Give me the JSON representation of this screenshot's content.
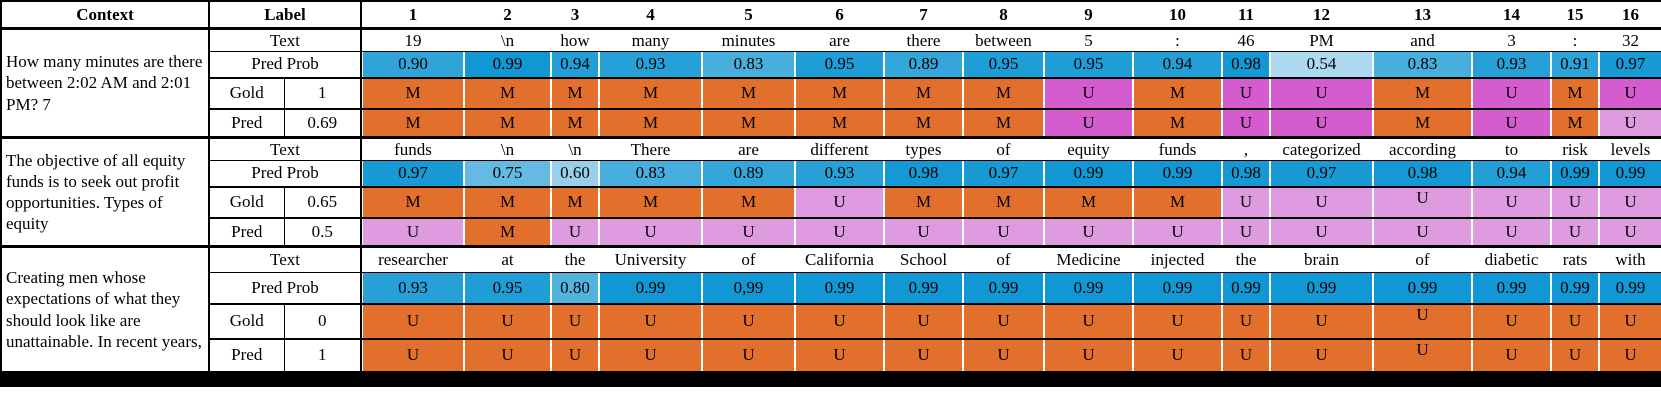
{
  "header": {
    "context": "Context",
    "label": "Label",
    "cols": [
      "1",
      "2",
      "3",
      "4",
      "5",
      "6",
      "7",
      "8",
      "9",
      "10",
      "11",
      "12",
      "13",
      "14",
      "15",
      "16"
    ]
  },
  "row_labels": {
    "text": "Text",
    "pred_prob": "Pred Prob",
    "gold": "Gold",
    "pred": "Pred"
  },
  "colors": {
    "orange": "#e2702c",
    "magenta": "#d45ccf",
    "plum": "#df9be0",
    "prob_low": "#badef2",
    "prob_high": "#0e96d3",
    "border": "#000000"
  },
  "blocks": [
    {
      "context": "How many minutes are there between 2:02 AM and 2:01 PM? 7",
      "gold_label": "1",
      "pred_label": "0.69",
      "tokens": [
        "19",
        "\\n",
        "how",
        "many",
        "minutes",
        "are",
        "there",
        "between",
        "5",
        ":",
        "46",
        "PM",
        "and",
        "3",
        ":",
        "32"
      ],
      "pred_prob": [
        "0.90",
        "0.99",
        "0.94",
        "0.93",
        "0.83",
        "0.95",
        "0.89",
        "0.95",
        "0.95",
        "0.94",
        "0.98",
        "0.54",
        "0.83",
        "0.93",
        "0.91",
        "0.97"
      ],
      "gold": [
        {
          "t": "M",
          "c": "orange"
        },
        {
          "t": "M",
          "c": "orange"
        },
        {
          "t": "M",
          "c": "orange"
        },
        {
          "t": "M",
          "c": "orange"
        },
        {
          "t": "M",
          "c": "orange"
        },
        {
          "t": "M",
          "c": "orange"
        },
        {
          "t": "M",
          "c": "orange"
        },
        {
          "t": "M",
          "c": "orange"
        },
        {
          "t": "U",
          "c": "magenta"
        },
        {
          "t": "M",
          "c": "orange"
        },
        {
          "t": "U",
          "c": "magenta"
        },
        {
          "t": "U",
          "c": "magenta"
        },
        {
          "t": "M",
          "c": "orange"
        },
        {
          "t": "U",
          "c": "magenta"
        },
        {
          "t": "M",
          "c": "orange"
        },
        {
          "t": "U",
          "c": "magenta"
        }
      ],
      "pred": [
        {
          "t": "M",
          "c": "orange"
        },
        {
          "t": "M",
          "c": "orange"
        },
        {
          "t": "M",
          "c": "orange"
        },
        {
          "t": "M",
          "c": "orange"
        },
        {
          "t": "M",
          "c": "orange"
        },
        {
          "t": "M",
          "c": "orange"
        },
        {
          "t": "M",
          "c": "orange"
        },
        {
          "t": "M",
          "c": "orange"
        },
        {
          "t": "U",
          "c": "magenta"
        },
        {
          "t": "M",
          "c": "orange"
        },
        {
          "t": "U",
          "c": "magenta"
        },
        {
          "t": "U",
          "c": "magenta"
        },
        {
          "t": "M",
          "c": "orange"
        },
        {
          "t": "U",
          "c": "magenta"
        },
        {
          "t": "M",
          "c": "orange"
        },
        {
          "t": "U",
          "c": "plum"
        }
      ]
    },
    {
      "context": "The objective of all equity funds is to seek out profit opportunities. Types of equity",
      "gold_label": "0.65",
      "pred_label": "0.5",
      "tokens": [
        "funds",
        "\\n",
        "\\n",
        "There",
        "are",
        "different",
        "types",
        "of",
        "equity",
        "funds",
        ",",
        "categorized",
        "according",
        "to",
        "risk",
        "levels"
      ],
      "pred_prob": [
        "0.97",
        "0.75",
        "0.60",
        "0.83",
        "0.89",
        "0.93",
        "0.98",
        "0.97",
        "0.99",
        "0.99",
        "0.98",
        "0.97",
        "0.98",
        "0.94",
        "0.99",
        "0.99"
      ],
      "gold": [
        {
          "t": "M",
          "c": "orange"
        },
        {
          "t": "M",
          "c": "orange"
        },
        {
          "t": "M",
          "c": "orange"
        },
        {
          "t": "M",
          "c": "orange"
        },
        {
          "t": "M",
          "c": "orange"
        },
        {
          "t": "U",
          "c": "plum"
        },
        {
          "t": "M",
          "c": "orange"
        },
        {
          "t": "M",
          "c": "orange"
        },
        {
          "t": "M",
          "c": "orange"
        },
        {
          "t": "M",
          "c": "orange"
        },
        {
          "t": "U",
          "c": "plum"
        },
        {
          "t": "U",
          "c": "plum"
        },
        {
          "t": "U",
          "c": "plum",
          "r": true
        },
        {
          "t": "U",
          "c": "plum"
        },
        {
          "t": "U",
          "c": "plum"
        },
        {
          "t": "U",
          "c": "plum"
        }
      ],
      "pred": [
        {
          "t": "U",
          "c": "plum"
        },
        {
          "t": "M",
          "c": "orange"
        },
        {
          "t": "U",
          "c": "plum"
        },
        {
          "t": "U",
          "c": "plum"
        },
        {
          "t": "U",
          "c": "plum"
        },
        {
          "t": "U",
          "c": "plum"
        },
        {
          "t": "U",
          "c": "plum"
        },
        {
          "t": "U",
          "c": "plum"
        },
        {
          "t": "U",
          "c": "plum"
        },
        {
          "t": "U",
          "c": "plum"
        },
        {
          "t": "U",
          "c": "plum"
        },
        {
          "t": "U",
          "c": "plum"
        },
        {
          "t": "U",
          "c": "plum"
        },
        {
          "t": "U",
          "c": "plum"
        },
        {
          "t": "U",
          "c": "plum"
        },
        {
          "t": "U",
          "c": "plum"
        }
      ]
    },
    {
      "context": "Creating men whose expectations of what they should look like are unattainable. In recent years,",
      "gold_label": "0",
      "pred_label": "1",
      "tokens": [
        "researcher",
        "at",
        "the",
        "University",
        "of",
        "California",
        "School",
        "of",
        "Medicine",
        "injected",
        "the",
        "brain",
        "of",
        "diabetic",
        "rats",
        "with"
      ],
      "pred_prob": [
        "0.93",
        "0.95",
        "0.80",
        "0.99",
        "0,99",
        "0.99",
        "0.99",
        "0.99",
        "0.99",
        "0.99",
        "0.99",
        "0.99",
        "0.99",
        "0.99",
        "0.99",
        "0.99"
      ],
      "gold": [
        {
          "t": "U",
          "c": "orange"
        },
        {
          "t": "U",
          "c": "orange"
        },
        {
          "t": "U",
          "c": "orange"
        },
        {
          "t": "U",
          "c": "orange"
        },
        {
          "t": "U",
          "c": "orange"
        },
        {
          "t": "U",
          "c": "orange"
        },
        {
          "t": "U",
          "c": "orange"
        },
        {
          "t": "U",
          "c": "orange"
        },
        {
          "t": "U",
          "c": "orange"
        },
        {
          "t": "U",
          "c": "orange"
        },
        {
          "t": "U",
          "c": "orange"
        },
        {
          "t": "U",
          "c": "orange"
        },
        {
          "t": "U",
          "c": "orange",
          "r": true
        },
        {
          "t": "U",
          "c": "orange"
        },
        {
          "t": "U",
          "c": "orange"
        },
        {
          "t": "U",
          "c": "orange"
        }
      ],
      "pred": [
        {
          "t": "U",
          "c": "orange"
        },
        {
          "t": "U",
          "c": "orange"
        },
        {
          "t": "U",
          "c": "orange"
        },
        {
          "t": "U",
          "c": "orange"
        },
        {
          "t": "U",
          "c": "orange"
        },
        {
          "t": "U",
          "c": "orange"
        },
        {
          "t": "U",
          "c": "orange"
        },
        {
          "t": "U",
          "c": "orange"
        },
        {
          "t": "U",
          "c": "orange"
        },
        {
          "t": "U",
          "c": "orange"
        },
        {
          "t": "U",
          "c": "orange"
        },
        {
          "t": "U",
          "c": "orange"
        },
        {
          "t": "U",
          "c": "orange",
          "r": true
        },
        {
          "t": "U",
          "c": "orange"
        },
        {
          "t": "U",
          "c": "orange"
        },
        {
          "t": "U",
          "c": "orange"
        }
      ]
    }
  ]
}
